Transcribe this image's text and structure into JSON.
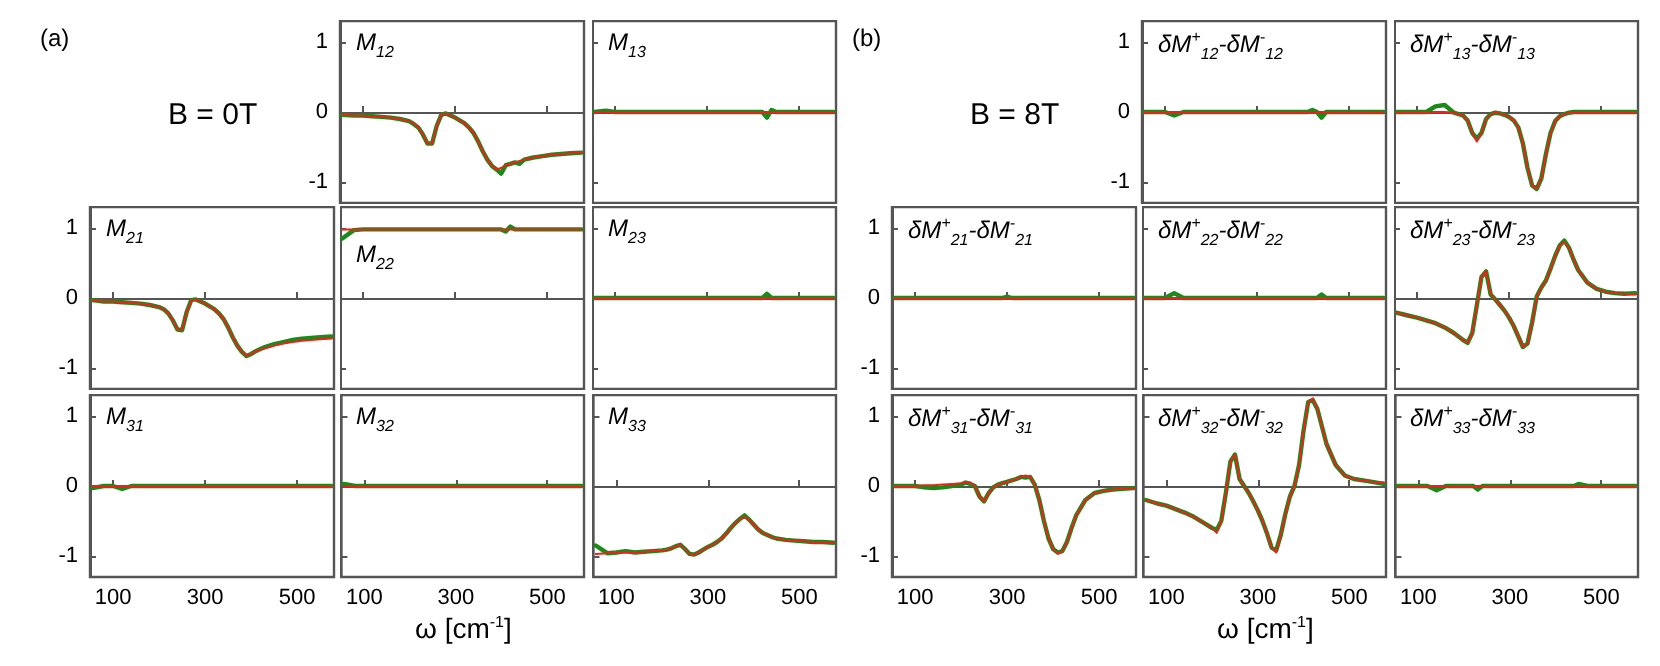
{
  "chart_data": [
    {
      "type": "line",
      "title": "M$_{12}$",
      "annotations": [
        "(a)",
        "B = 0T"
      ],
      "tick_labels": "y",
      "x": [
        55,
        80,
        100,
        120,
        140,
        160,
        180,
        200,
        210,
        220,
        230,
        240,
        250,
        260,
        270,
        280,
        290,
        300,
        310,
        320,
        330,
        340,
        350,
        360,
        370,
        380,
        390,
        400,
        410,
        420,
        430,
        440,
        450,
        470,
        490,
        510,
        530,
        550,
        575
      ],
      "xlim": [
        50,
        580
      ],
      "xticks": [
        100,
        300,
        500
      ],
      "ylim": [
        -1.3,
        1.3
      ],
      "yticks": [
        -1,
        0,
        1
      ],
      "series": [
        {
          "color": "#1a8a1a",
          "values": [
            -0.04,
            -0.05,
            -0.05,
            -0.06,
            -0.07,
            -0.08,
            -0.1,
            -0.13,
            -0.17,
            -0.22,
            -0.32,
            -0.45,
            -0.45,
            -0.2,
            -0.04,
            -0.02,
            -0.05,
            -0.08,
            -0.12,
            -0.16,
            -0.22,
            -0.3,
            -0.42,
            -0.56,
            -0.68,
            -0.77,
            -0.82,
            -0.88,
            -0.76,
            -0.74,
            -0.72,
            -0.74,
            -0.68,
            -0.65,
            -0.63,
            -0.61,
            -0.6,
            -0.59,
            -0.58
          ]
        },
        {
          "color": "#e8241a",
          "values": [
            -0.04,
            -0.05,
            -0.05,
            -0.06,
            -0.07,
            -0.08,
            -0.1,
            -0.13,
            -0.16,
            -0.22,
            -0.32,
            -0.45,
            -0.45,
            -0.2,
            -0.04,
            -0.02,
            -0.05,
            -0.08,
            -0.12,
            -0.16,
            -0.22,
            -0.3,
            -0.42,
            -0.56,
            -0.68,
            -0.77,
            -0.82,
            -0.8,
            -0.76,
            -0.74,
            -0.72,
            -0.7,
            -0.68,
            -0.65,
            -0.63,
            -0.61,
            -0.6,
            -0.59,
            -0.58
          ]
        }
      ]
    },
    {
      "type": "line",
      "title": "M$_{13}$",
      "tick_labels": false,
      "x": [
        55,
        80,
        100,
        120,
        140,
        160,
        180,
        200,
        210,
        220,
        230,
        240,
        250,
        260,
        270,
        280,
        290,
        300,
        310,
        320,
        330,
        340,
        350,
        360,
        370,
        380,
        390,
        400,
        410,
        420,
        430,
        440,
        450,
        470,
        490,
        510,
        530,
        550,
        575
      ],
      "xlim": [
        50,
        580
      ],
      "xticks": [
        100,
        300,
        500
      ],
      "ylim": [
        -1.3,
        1.3
      ],
      "yticks": [
        -1,
        0,
        1
      ],
      "series": [
        {
          "color": "#1a8a1a",
          "values": [
            0,
            0.02,
            0,
            0,
            0,
            0,
            0,
            0,
            0,
            0,
            0,
            0,
            0,
            0,
            0,
            0,
            0,
            0,
            0,
            0,
            0,
            0,
            0,
            0,
            0,
            0,
            0,
            0,
            0,
            0,
            -0.08,
            0.03,
            0,
            0,
            0,
            0,
            0,
            0,
            0
          ]
        },
        {
          "color": "#e8241a",
          "values": [
            0,
            0,
            0,
            0,
            0,
            0,
            0,
            0,
            0,
            0,
            0,
            0,
            0,
            0,
            0,
            0,
            0,
            0,
            0,
            0,
            0,
            0,
            0,
            0,
            0,
            0,
            0,
            0,
            0,
            0,
            0,
            0,
            0,
            0,
            0,
            0,
            0,
            0,
            0
          ]
        }
      ]
    },
    {
      "type": "line",
      "title": "M$_{21}$",
      "tick_labels": "y",
      "x": [
        55,
        80,
        100,
        120,
        140,
        160,
        180,
        200,
        210,
        220,
        230,
        240,
        250,
        260,
        270,
        280,
        290,
        300,
        310,
        320,
        330,
        340,
        350,
        360,
        370,
        380,
        390,
        400,
        410,
        420,
        430,
        440,
        450,
        470,
        490,
        510,
        530,
        550,
        575
      ],
      "xlim": [
        50,
        580
      ],
      "xticks": [
        100,
        300,
        500
      ],
      "ylim": [
        -1.3,
        1.3
      ],
      "yticks": [
        -1,
        0,
        1
      ],
      "series": [
        {
          "color": "#1a8a1a",
          "values": [
            -0.03,
            -0.05,
            -0.05,
            -0.06,
            -0.07,
            -0.08,
            -0.1,
            -0.13,
            -0.16,
            -0.22,
            -0.32,
            -0.45,
            -0.46,
            -0.2,
            -0.03,
            -0.02,
            -0.05,
            -0.08,
            -0.12,
            -0.16,
            -0.22,
            -0.3,
            -0.42,
            -0.56,
            -0.68,
            -0.77,
            -0.83,
            -0.8,
            -0.76,
            -0.73,
            -0.7,
            -0.68,
            -0.66,
            -0.63,
            -0.6,
            -0.58,
            -0.57,
            -0.56,
            -0.55
          ]
        },
        {
          "color": "#e8241a",
          "values": [
            -0.04,
            -0.05,
            -0.05,
            -0.06,
            -0.07,
            -0.08,
            -0.1,
            -0.13,
            -0.16,
            -0.22,
            -0.32,
            -0.45,
            -0.45,
            -0.2,
            -0.04,
            -0.02,
            -0.05,
            -0.08,
            -0.12,
            -0.16,
            -0.22,
            -0.3,
            -0.42,
            -0.56,
            -0.68,
            -0.77,
            -0.82,
            -0.8,
            -0.76,
            -0.74,
            -0.72,
            -0.7,
            -0.68,
            -0.65,
            -0.63,
            -0.61,
            -0.6,
            -0.59,
            -0.58
          ]
        }
      ]
    },
    {
      "type": "line",
      "title": "M$_{22}$",
      "tick_labels": false,
      "x": [
        55,
        80,
        100,
        120,
        140,
        160,
        180,
        200,
        210,
        220,
        230,
        240,
        250,
        260,
        270,
        280,
        290,
        300,
        310,
        320,
        330,
        340,
        350,
        360,
        370,
        380,
        390,
        400,
        410,
        420,
        430,
        440,
        450,
        470,
        490,
        510,
        530,
        550,
        575
      ],
      "xlim": [
        50,
        580
      ],
      "xticks": [
        100,
        300,
        500
      ],
      "ylim": [
        -1.3,
        1.3
      ],
      "yticks": [
        -1,
        0,
        1
      ],
      "series": [
        {
          "color": "#1a8a1a",
          "values": [
            0.85,
            0.97,
            0.98,
            0.98,
            0.98,
            0.98,
            0.98,
            0.98,
            0.98,
            0.98,
            0.98,
            0.98,
            0.98,
            0.98,
            0.98,
            0.98,
            0.98,
            0.98,
            0.98,
            0.98,
            0.98,
            0.98,
            0.98,
            0.98,
            0.98,
            0.98,
            0.98,
            0.98,
            0.95,
            1.02,
            0.98,
            0.98,
            0.98,
            0.98,
            0.98,
            0.98,
            0.98,
            0.98,
            0.98
          ]
        },
        {
          "color": "#e8241a",
          "values": [
            0.98,
            0.98,
            0.98,
            0.98,
            0.98,
            0.98,
            0.98,
            0.98,
            0.98,
            0.98,
            0.98,
            0.98,
            0.98,
            0.98,
            0.98,
            0.98,
            0.98,
            0.98,
            0.98,
            0.98,
            0.98,
            0.98,
            0.98,
            0.98,
            0.98,
            0.98,
            0.98,
            0.98,
            0.98,
            0.98,
            0.98,
            0.98,
            0.98,
            0.98,
            0.98,
            0.98,
            0.98,
            0.98,
            0.98
          ]
        }
      ]
    },
    {
      "type": "line",
      "title": "M$_{23}$",
      "tick_labels": false,
      "x": [
        55,
        80,
        100,
        120,
        140,
        160,
        180,
        200,
        210,
        220,
        230,
        240,
        250,
        260,
        270,
        280,
        290,
        300,
        310,
        320,
        330,
        340,
        350,
        360,
        370,
        380,
        390,
        400,
        410,
        420,
        430,
        440,
        450,
        470,
        490,
        510,
        530,
        550,
        575
      ],
      "xlim": [
        50,
        580
      ],
      "xticks": [
        100,
        300,
        500
      ],
      "ylim": [
        -1.3,
        1.3
      ],
      "yticks": [
        -1,
        0,
        1
      ],
      "series": [
        {
          "color": "#1a8a1a",
          "values": [
            0,
            0,
            0,
            0,
            0,
            0,
            0,
            0,
            0,
            0,
            0,
            0,
            0,
            0,
            0,
            0,
            0,
            0,
            0,
            0,
            0,
            0,
            0,
            0,
            0,
            0,
            0,
            0,
            0,
            0,
            0.06,
            0,
            0,
            0,
            0,
            0,
            0,
            0,
            0
          ]
        },
        {
          "color": "#e8241a",
          "values": [
            0,
            0,
            0,
            0,
            0,
            0,
            0,
            0,
            0,
            0,
            0,
            0,
            0,
            0,
            0,
            0,
            0,
            0,
            0,
            0,
            0,
            0,
            0,
            0,
            0,
            0,
            0,
            0,
            0,
            0,
            0,
            0,
            0,
            0,
            0,
            0,
            0,
            0,
            0
          ]
        }
      ]
    },
    {
      "type": "line",
      "title": "M$_{31}$",
      "x": [
        55,
        80,
        100,
        120,
        140,
        160,
        180,
        200,
        210,
        220,
        230,
        240,
        250,
        260,
        270,
        280,
        290,
        300,
        310,
        320,
        330,
        340,
        350,
        360,
        370,
        380,
        390,
        400,
        410,
        420,
        430,
        440,
        450,
        470,
        490,
        510,
        530,
        550,
        575
      ],
      "xlim": [
        50,
        580
      ],
      "xticks": [
        100,
        300,
        500
      ],
      "ylim": [
        -1.3,
        1.3
      ],
      "yticks": [
        -1,
        0,
        1
      ],
      "series": [
        {
          "color": "#1a8a1a",
          "values": [
            -0.03,
            0,
            0,
            -0.04,
            0,
            0,
            0,
            0,
            0,
            0,
            0,
            0,
            0,
            0,
            0,
            0,
            0,
            0,
            0,
            0,
            0,
            0,
            0,
            0,
            0,
            0,
            0,
            0,
            0,
            0,
            0,
            0,
            0,
            0,
            0,
            0,
            0,
            0,
            0
          ]
        },
        {
          "color": "#e8241a",
          "values": [
            0,
            0,
            0,
            0,
            0,
            0,
            0,
            0,
            0,
            0,
            0,
            0,
            0,
            0,
            0,
            0,
            0,
            0,
            0,
            0,
            0,
            0,
            0,
            0,
            0,
            0,
            0,
            0,
            0,
            0,
            0,
            0,
            0,
            0,
            0,
            0,
            0,
            0,
            0
          ]
        }
      ]
    },
    {
      "type": "line",
      "title": "M$_{32}$",
      "xlabel": "ω [cm$^{-1}$]",
      "tick_labels": "x",
      "x": [
        55,
        80,
        100,
        120,
        140,
        160,
        180,
        200,
        210,
        220,
        230,
        240,
        250,
        260,
        270,
        280,
        290,
        300,
        310,
        320,
        330,
        340,
        350,
        360,
        370,
        380,
        390,
        400,
        410,
        420,
        430,
        440,
        450,
        470,
        490,
        510,
        530,
        550,
        575
      ],
      "xlim": [
        50,
        580
      ],
      "xticks": [
        100,
        300,
        500
      ],
      "ylim": [
        -1.3,
        1.3
      ],
      "yticks": [
        -1,
        0,
        1
      ],
      "series": [
        {
          "color": "#1a8a1a",
          "values": [
            0.03,
            0,
            0,
            0,
            0,
            0,
            0,
            0,
            0,
            0,
            0,
            0,
            0,
            0,
            0,
            0,
            0,
            0,
            0,
            0,
            0,
            0,
            0,
            0,
            0,
            0,
            0,
            0,
            0,
            0,
            0,
            0,
            0,
            0,
            0,
            0,
            0,
            0,
            0
          ]
        },
        {
          "color": "#e8241a",
          "values": [
            0,
            0,
            0,
            0,
            0,
            0,
            0,
            0,
            0,
            0,
            0,
            0,
            0,
            0,
            0,
            0,
            0,
            0,
            0,
            0,
            0,
            0,
            0,
            0,
            0,
            0,
            0,
            0,
            0,
            0,
            0,
            0,
            0,
            0,
            0,
            0,
            0,
            0,
            0
          ]
        }
      ]
    },
    {
      "type": "line",
      "title": "M$_{33}$",
      "tick_labels": "x",
      "x": [
        55,
        80,
        100,
        120,
        140,
        160,
        180,
        200,
        210,
        220,
        230,
        240,
        250,
        260,
        270,
        280,
        290,
        300,
        310,
        320,
        330,
        340,
        350,
        360,
        370,
        380,
        390,
        400,
        410,
        420,
        430,
        440,
        450,
        470,
        490,
        510,
        530,
        550,
        575
      ],
      "xlim": [
        50,
        580
      ],
      "xticks": [
        100,
        300,
        500
      ],
      "ylim": [
        -1.3,
        1.3
      ],
      "yticks": [
        -1,
        0,
        1
      ],
      "series": [
        {
          "color": "#1a8a1a",
          "values": [
            -0.85,
            -0.96,
            -0.95,
            -0.93,
            -0.95,
            -0.94,
            -0.93,
            -0.92,
            -0.91,
            -0.89,
            -0.86,
            -0.84,
            -0.9,
            -0.97,
            -0.98,
            -0.95,
            -0.91,
            -0.87,
            -0.84,
            -0.8,
            -0.75,
            -0.68,
            -0.6,
            -0.53,
            -0.47,
            -0.42,
            -0.48,
            -0.55,
            -0.62,
            -0.67,
            -0.7,
            -0.73,
            -0.75,
            -0.77,
            -0.78,
            -0.79,
            -0.8,
            -0.8,
            -0.81
          ]
        },
        {
          "color": "#e8241a",
          "values": [
            -0.97,
            -0.96,
            -0.95,
            -0.95,
            -0.95,
            -0.94,
            -0.93,
            -0.92,
            -0.91,
            -0.89,
            -0.86,
            -0.84,
            -0.9,
            -0.97,
            -0.98,
            -0.95,
            -0.91,
            -0.87,
            -0.84,
            -0.8,
            -0.75,
            -0.68,
            -0.6,
            -0.53,
            -0.47,
            -0.44,
            -0.48,
            -0.55,
            -0.62,
            -0.67,
            -0.7,
            -0.73,
            -0.75,
            -0.77,
            -0.78,
            -0.79,
            -0.8,
            -0.8,
            -0.81
          ]
        }
      ]
    },
    {
      "type": "line",
      "title": "δM$^{+}$$_{12}$-δM$^{-}$$_{12}$",
      "annotations": [
        "(b)",
        "B = 8T"
      ],
      "tick_labels": "y",
      "x": [
        55,
        80,
        100,
        120,
        140,
        160,
        180,
        200,
        210,
        220,
        230,
        240,
        250,
        260,
        270,
        280,
        290,
        300,
        310,
        320,
        330,
        340,
        350,
        360,
        370,
        380,
        390,
        400,
        410,
        420,
        430,
        440,
        450,
        470,
        490,
        510,
        530,
        550,
        575
      ],
      "xlim": [
        50,
        580
      ],
      "xticks": [
        100,
        300,
        500
      ],
      "ylim": [
        -1.3,
        1.3
      ],
      "yticks": [
        -1,
        0,
        1
      ],
      "series": [
        {
          "color": "#1a8a1a",
          "values": [
            0,
            0,
            0,
            -0.05,
            0,
            0,
            0,
            0,
            0,
            0,
            0,
            0,
            0,
            0,
            0,
            0,
            0,
            0,
            0,
            0,
            0,
            0,
            0,
            0,
            0,
            0,
            0,
            0,
            0,
            0.03,
            0,
            -0.08,
            0,
            0,
            0,
            0,
            0,
            0,
            0
          ]
        },
        {
          "color": "#e8241a",
          "values": [
            0,
            0,
            0,
            0,
            0,
            0,
            0,
            0,
            0,
            0,
            0,
            0,
            0,
            0,
            0,
            0,
            0,
            0,
            0,
            0,
            0,
            0,
            0,
            0,
            0,
            0,
            0,
            0,
            0,
            0,
            0,
            0,
            0,
            0,
            0,
            0,
            0,
            0,
            0
          ]
        }
      ]
    },
    {
      "type": "line",
      "title": "δM$^{+}$$_{13}$-δM$^{-}$$_{13}$",
      "tick_labels": false,
      "x": [
        55,
        80,
        100,
        120,
        140,
        160,
        180,
        200,
        210,
        220,
        230,
        240,
        250,
        260,
        270,
        280,
        290,
        300,
        310,
        320,
        330,
        340,
        350,
        360,
        370,
        380,
        390,
        400,
        410,
        420,
        430,
        440,
        450,
        470,
        490,
        510,
        530,
        550,
        575
      ],
      "xlim": [
        50,
        580
      ],
      "xticks": [
        100,
        300,
        500
      ],
      "ylim": [
        -1.3,
        1.3
      ],
      "yticks": [
        -1,
        0,
        1
      ],
      "series": [
        {
          "color": "#1a8a1a",
          "values": [
            0,
            0,
            0,
            0,
            0.08,
            0.1,
            -0.01,
            -0.05,
            -0.12,
            -0.3,
            -0.38,
            -0.3,
            -0.1,
            -0.03,
            -0.01,
            -0.02,
            -0.04,
            -0.07,
            -0.12,
            -0.22,
            -0.45,
            -0.8,
            -1.05,
            -1.1,
            -0.95,
            -0.6,
            -0.3,
            -0.13,
            -0.06,
            -0.03,
            -0.01,
            0,
            0,
            0,
            0,
            0,
            0,
            0,
            0
          ]
        },
        {
          "color": "#e8241a",
          "values": [
            0,
            0,
            0,
            0,
            0,
            0,
            -0.01,
            -0.05,
            -0.12,
            -0.3,
            -0.42,
            -0.3,
            -0.1,
            -0.03,
            -0.01,
            -0.02,
            -0.04,
            -0.07,
            -0.12,
            -0.22,
            -0.45,
            -0.8,
            -1.05,
            -1.1,
            -0.95,
            -0.6,
            -0.3,
            -0.13,
            -0.06,
            -0.03,
            -0.01,
            0,
            0,
            0,
            0,
            0,
            0,
            0,
            0
          ]
        }
      ]
    },
    {
      "type": "line",
      "title": "δM$^{+}$$_{21}$-δM$^{-}$$_{21}$",
      "tick_labels": "y",
      "x": [
        55,
        80,
        100,
        120,
        140,
        160,
        180,
        200,
        210,
        220,
        230,
        240,
        250,
        260,
        270,
        280,
        290,
        300,
        310,
        320,
        330,
        340,
        350,
        360,
        370,
        380,
        390,
        400,
        410,
        420,
        430,
        440,
        450,
        470,
        490,
        510,
        530,
        550,
        575
      ],
      "xlim": [
        50,
        580
      ],
      "xticks": [
        100,
        300,
        500
      ],
      "ylim": [
        -1.3,
        1.3
      ],
      "yticks": [
        -1,
        0,
        1
      ],
      "series": [
        {
          "color": "#1a8a1a",
          "values": [
            0,
            0,
            0,
            0,
            0,
            0,
            0,
            0,
            0,
            0,
            0,
            0,
            0,
            0,
            0,
            0,
            0,
            0.02,
            0,
            0,
            0,
            0,
            0,
            0,
            0,
            0,
            0,
            0,
            0,
            0,
            0,
            0,
            0,
            0,
            0,
            0,
            0,
            0,
            0
          ]
        },
        {
          "color": "#e8241a",
          "values": [
            0,
            0,
            0,
            0,
            0,
            0,
            0,
            0,
            0,
            0,
            0,
            0,
            0,
            0,
            0,
            0,
            0,
            0,
            0,
            0,
            0,
            0,
            0,
            0,
            0,
            0,
            0,
            0,
            0,
            0,
            0,
            0,
            0,
            0,
            0,
            0,
            0,
            0,
            0
          ]
        }
      ]
    },
    {
      "type": "line",
      "title": "δM$^{+}$$_{22}$-δM$^{-}$$_{22}$",
      "tick_labels": false,
      "x": [
        55,
        80,
        100,
        120,
        140,
        160,
        180,
        200,
        210,
        220,
        230,
        240,
        250,
        260,
        270,
        280,
        290,
        300,
        310,
        320,
        330,
        340,
        350,
        360,
        370,
        380,
        390,
        400,
        410,
        420,
        430,
        440,
        450,
        470,
        490,
        510,
        530,
        550,
        575
      ],
      "xlim": [
        50,
        580
      ],
      "xticks": [
        100,
        300,
        500
      ],
      "ylim": [
        -1.3,
        1.3
      ],
      "yticks": [
        -1,
        0,
        1
      ],
      "series": [
        {
          "color": "#1a8a1a",
          "values": [
            0,
            0,
            0,
            0.07,
            0,
            0,
            0,
            0,
            0,
            0,
            0,
            0,
            0,
            0,
            0,
            0,
            0,
            0,
            0,
            0,
            0,
            0,
            0,
            0,
            0,
            0,
            0,
            0,
            0,
            0,
            0,
            0.05,
            0,
            0,
            0,
            0,
            0,
            0,
            0
          ]
        },
        {
          "color": "#e8241a",
          "values": [
            0,
            0,
            0,
            0,
            0,
            0,
            0,
            0,
            0,
            0,
            0,
            0,
            0,
            0,
            0,
            0,
            0,
            0,
            0,
            0,
            0,
            0,
            0,
            0,
            0,
            0,
            0,
            0,
            0,
            0,
            0,
            0,
            0,
            0,
            0,
            0,
            0,
            0,
            0
          ]
        }
      ]
    },
    {
      "type": "line",
      "title": "δM$^{+}$$_{23}$-δM$^{-}$$_{23}$",
      "tick_labels": false,
      "x": [
        55,
        80,
        100,
        120,
        140,
        160,
        180,
        200,
        210,
        220,
        230,
        240,
        250,
        260,
        270,
        280,
        290,
        300,
        310,
        320,
        330,
        340,
        350,
        360,
        370,
        380,
        390,
        400,
        410,
        420,
        430,
        440,
        450,
        470,
        490,
        510,
        530,
        550,
        575
      ],
      "xlim": [
        50,
        580
      ],
      "xticks": [
        100,
        300,
        500
      ],
      "ylim": [
        -1.3,
        1.3
      ],
      "yticks": [
        -1,
        0,
        1
      ],
      "series": [
        {
          "color": "#1a8a1a",
          "values": [
            -0.21,
            -0.25,
            -0.28,
            -0.32,
            -0.36,
            -0.42,
            -0.5,
            -0.6,
            -0.64,
            -0.5,
            -0.1,
            0.3,
            0.38,
            0.05,
            -0.02,
            -0.1,
            -0.18,
            -0.28,
            -0.4,
            -0.55,
            -0.7,
            -0.65,
            -0.35,
            0.02,
            0.15,
            0.25,
            0.42,
            0.6,
            0.75,
            0.82,
            0.72,
            0.55,
            0.4,
            0.22,
            0.13,
            0.09,
            0.07,
            0.06,
            0.07
          ]
        },
        {
          "color": "#e8241a",
          "values": [
            -0.21,
            -0.25,
            -0.28,
            -0.32,
            -0.36,
            -0.42,
            -0.5,
            -0.6,
            -0.64,
            -0.5,
            -0.1,
            0.3,
            0.38,
            0.05,
            -0.02,
            -0.1,
            -0.18,
            -0.28,
            -0.4,
            -0.55,
            -0.7,
            -0.65,
            -0.35,
            0.02,
            0.15,
            0.25,
            0.42,
            0.6,
            0.75,
            0.8,
            0.72,
            0.55,
            0.4,
            0.22,
            0.13,
            0.09,
            0.07,
            0.06,
            0.05
          ]
        }
      ]
    },
    {
      "type": "line",
      "title": "δM$^{+}$$_{31}$-δM$^{-}$$_{31}$",
      "x": [
        55,
        80,
        100,
        120,
        140,
        160,
        180,
        200,
        210,
        220,
        230,
        240,
        250,
        260,
        270,
        280,
        290,
        300,
        310,
        320,
        330,
        340,
        350,
        360,
        370,
        380,
        390,
        400,
        410,
        420,
        430,
        440,
        450,
        470,
        490,
        510,
        530,
        550,
        575
      ],
      "xlim": [
        50,
        580
      ],
      "xticks": [
        100,
        300,
        500
      ],
      "ylim": [
        -1.3,
        1.3
      ],
      "yticks": [
        -1,
        0,
        1
      ],
      "series": [
        {
          "color": "#1a8a1a",
          "values": [
            0,
            0,
            0,
            -0.02,
            -0.03,
            -0.02,
            0,
            0.02,
            0.05,
            0.03,
            0,
            -0.15,
            -0.22,
            -0.1,
            -0.02,
            0.02,
            0.04,
            0.06,
            0.08,
            0.1,
            0.13,
            0.12,
            0.13,
            0.02,
            -0.2,
            -0.5,
            -0.75,
            -0.9,
            -0.95,
            -0.93,
            -0.8,
            -0.6,
            -0.42,
            -0.2,
            -0.1,
            -0.07,
            -0.05,
            -0.04,
            -0.03
          ]
        },
        {
          "color": "#e8241a",
          "values": [
            0,
            0,
            0,
            0.01,
            0.01,
            0.02,
            0.03,
            0.04,
            0.05,
            0.05,
            0,
            -0.15,
            -0.22,
            -0.1,
            -0.02,
            0.02,
            0.04,
            0.06,
            0.08,
            0.1,
            0.13,
            0.15,
            0.13,
            0.02,
            -0.2,
            -0.5,
            -0.75,
            -0.9,
            -0.97,
            -0.93,
            -0.8,
            -0.6,
            -0.42,
            -0.2,
            -0.1,
            -0.07,
            -0.05,
            -0.04,
            -0.03
          ]
        }
      ]
    },
    {
      "type": "line",
      "title": "δM$^{+}$$_{32}$-δM$^{-}$$_{32}$",
      "xlabel": "ω [cm$^{-1}$]",
      "tick_labels": "x",
      "x": [
        55,
        80,
        100,
        120,
        140,
        160,
        180,
        200,
        210,
        220,
        230,
        240,
        250,
        260,
        270,
        280,
        290,
        300,
        310,
        320,
        330,
        340,
        350,
        360,
        370,
        380,
        390,
        400,
        410,
        420,
        430,
        440,
        450,
        470,
        490,
        510,
        530,
        550,
        575
      ],
      "xlim": [
        50,
        580
      ],
      "xticks": [
        100,
        300,
        500
      ],
      "ylim": [
        -1.3,
        1.3
      ],
      "yticks": [
        -1,
        0,
        1
      ],
      "series": [
        {
          "color": "#1a8a1a",
          "values": [
            -0.2,
            -0.25,
            -0.28,
            -0.33,
            -0.38,
            -0.44,
            -0.52,
            -0.6,
            -0.63,
            -0.5,
            -0.1,
            0.35,
            0.45,
            0.1,
            0,
            -0.1,
            -0.22,
            -0.35,
            -0.5,
            -0.68,
            -0.88,
            -0.92,
            -0.7,
            -0.4,
            -0.15,
            0,
            0.3,
            0.8,
            1.2,
            1.23,
            1.1,
            0.85,
            0.6,
            0.3,
            0.15,
            0.1,
            0.08,
            0.06,
            0.03
          ]
        },
        {
          "color": "#e8241a",
          "values": [
            -0.2,
            -0.25,
            -0.28,
            -0.33,
            -0.38,
            -0.44,
            -0.52,
            -0.6,
            -0.67,
            -0.5,
            -0.1,
            0.35,
            0.45,
            0.1,
            0,
            -0.1,
            -0.22,
            -0.35,
            -0.5,
            -0.68,
            -0.88,
            -0.95,
            -0.7,
            -0.4,
            -0.15,
            0,
            0.3,
            0.8,
            1.2,
            1.25,
            1.1,
            0.85,
            0.6,
            0.3,
            0.15,
            0.1,
            0.08,
            0.06,
            0.05
          ]
        }
      ]
    },
    {
      "type": "line",
      "title": "δM$^{+}$$_{33}$-δM$^{-}$$_{33}$",
      "tick_labels": "x",
      "x": [
        55,
        80,
        100,
        120,
        140,
        160,
        180,
        200,
        210,
        220,
        230,
        240,
        250,
        260,
        270,
        280,
        290,
        300,
        310,
        320,
        330,
        340,
        350,
        360,
        370,
        380,
        390,
        400,
        410,
        420,
        430,
        440,
        450,
        470,
        490,
        510,
        530,
        550,
        575
      ],
      "xlim": [
        50,
        580
      ],
      "xticks": [
        100,
        300,
        500
      ],
      "ylim": [
        -1.3,
        1.3
      ],
      "yticks": [
        -1,
        0,
        1
      ],
      "series": [
        {
          "color": "#1a8a1a",
          "values": [
            0,
            0,
            0,
            0,
            -0.06,
            0,
            0,
            0,
            0,
            0,
            -0.05,
            0,
            0,
            0,
            0,
            0,
            0,
            0,
            0,
            0,
            0,
            0,
            0,
            0,
            0,
            0,
            0,
            0,
            0,
            0,
            0,
            0,
            0.03,
            0,
            0,
            0,
            0,
            0,
            0
          ]
        },
        {
          "color": "#e8241a",
          "values": [
            0,
            0,
            0,
            0,
            0,
            0,
            0,
            0,
            0,
            0,
            0,
            0,
            0,
            0,
            0,
            0,
            0,
            0,
            0,
            0,
            0,
            0,
            0,
            0,
            0,
            0,
            0,
            0,
            0,
            0,
            0,
            0,
            0,
            0,
            0,
            0,
            0,
            0,
            0
          ]
        }
      ]
    }
  ]
}
